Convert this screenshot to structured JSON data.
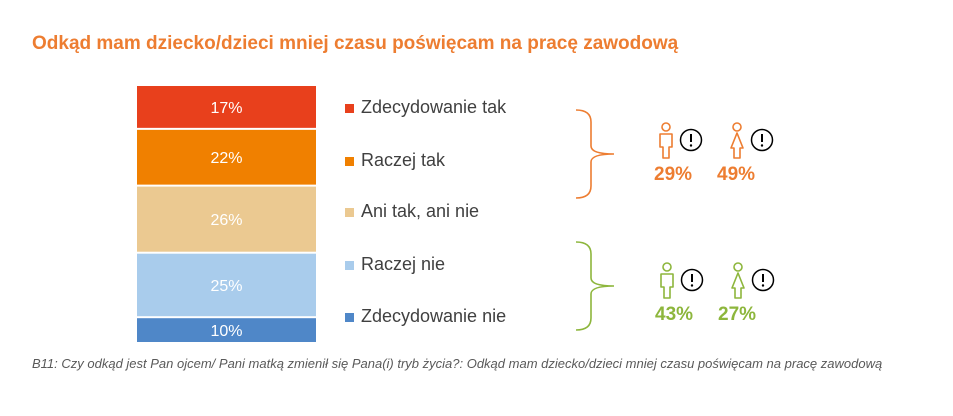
{
  "title": "Odkąd mam dziecko/dzieci mniej czasu poświęcam na pracę zawodową",
  "caption": "B11: Czy odkąd jest Pan ojcem/ Pani matką zmienił się Pana(i) tryb życia?: Odkąd mam dziecko/dzieci mniej czasu poświęcam na pracę zawodową",
  "chart_data": {
    "type": "bar",
    "stacked": true,
    "orientation": "vertical",
    "categories": [
      "Zdecydowanie tak",
      "Raczej tak",
      "Ani tak, ani nie",
      "Raczej nie",
      "Zdecydowanie nie"
    ],
    "values": [
      17,
      22,
      26,
      25,
      10
    ],
    "labels": [
      "17%",
      "22%",
      "26%",
      "25%",
      "10%"
    ],
    "colors": [
      "#E8401C",
      "#F08000",
      "#EBC991",
      "#A9CCEC",
      "#4F87C8"
    ],
    "legend_position": "right"
  },
  "groups": [
    {
      "color": "#ED7D31",
      "icons": [
        "male-icon",
        "exclamation-icon",
        "female-icon",
        "exclamation-icon"
      ],
      "male_value": "29%",
      "female_value": "49%"
    },
    {
      "color": "#8DB63C",
      "icons": [
        "male-icon",
        "exclamation-icon",
        "female-icon",
        "exclamation-icon"
      ],
      "male_value": "43%",
      "female_value": "27%"
    }
  ]
}
